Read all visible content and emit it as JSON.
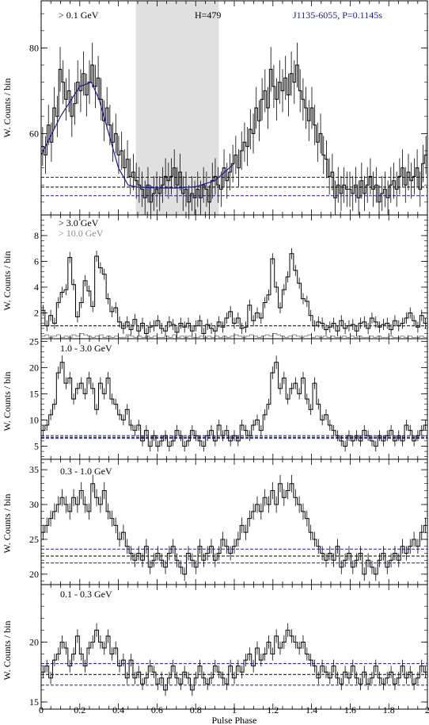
{
  "figure": {
    "xlabel": "Pulse Phase",
    "x_ticks": [
      "0",
      "0.2",
      "0.4",
      "0.6",
      "0.8",
      "1",
      "1.2",
      "1.4",
      "1.6",
      "1.8",
      "2"
    ],
    "colors": {
      "histogram": "#000000",
      "fit": "#1a1aa8",
      "blue_dashed": "#1a1aa8",
      "black_dashed": "#000000",
      "shade": "#e0e0e0",
      "pulsar_label": "#1a1aa8",
      "gray_label": "#8a8a8a"
    }
  },
  "chart_data": [
    {
      "type": "line",
      "panel": "top",
      "energy_label": "> 0.1 GeV",
      "h_label": "H=479",
      "pulsar_label": "J1135-6055, P=0.1145s",
      "ylabel": "W. Counts / bin",
      "y_ticks": [
        "60",
        "80"
      ],
      "ylim": [
        41,
        91
      ],
      "xlim": [
        0,
        2
      ],
      "off_pulse_region": [
        0.49,
        0.92
      ],
      "baseline": 47.5,
      "baseline_band": [
        45.5,
        49.8
      ],
      "fit_curve": {
        "x": [
          0.0,
          0.1,
          0.2,
          0.26,
          0.3,
          0.35,
          0.4,
          0.45,
          0.5,
          0.6,
          0.7,
          0.8,
          0.9,
          1.0
        ],
        "y": [
          55,
          64,
          71,
          72,
          68,
          60,
          52,
          48,
          47.5,
          47.3,
          47.3,
          47.6,
          49,
          53
        ]
      },
      "values": [
        57,
        55,
        62,
        58,
        66,
        64,
        75,
        72,
        68,
        70,
        64,
        67,
        72,
        70,
        74,
        69,
        72,
        76,
        71,
        73,
        68,
        63,
        66,
        62,
        58,
        60,
        55,
        56,
        52,
        54,
        50,
        51,
        49,
        48,
        47,
        45,
        48,
        44,
        46,
        47,
        46,
        48,
        50,
        49,
        50,
        52,
        48,
        51,
        46,
        47,
        44,
        46,
        45,
        47,
        45,
        48,
        47,
        44,
        49,
        50,
        48,
        47,
        52,
        49,
        51,
        53,
        55,
        52,
        56,
        58,
        57,
        61,
        60,
        66,
        63,
        68,
        70,
        66,
        75,
        71,
        68,
        72,
        70,
        73,
        69,
        74,
        72,
        76,
        70,
        68,
        66,
        63,
        66,
        62,
        58,
        60,
        55,
        54,
        50,
        51,
        45,
        48,
        46,
        48,
        47,
        47,
        46,
        48,
        45,
        49,
        46,
        48,
        50,
        47,
        48,
        44,
        46,
        47,
        45,
        48,
        49,
        47,
        50,
        52,
        48,
        51,
        49,
        50,
        52,
        47,
        53,
        55
      ]
    },
    {
      "type": "line",
      "panel": "second",
      "energy_label": "> 3.0 GeV",
      "gray_label": "> 10.0 GeV",
      "ylabel": "W. Counts / bin",
      "y_ticks": [
        "2",
        "4",
        "6",
        "8"
      ],
      "ylim": [
        0,
        9.6
      ],
      "xlim": [
        0,
        2
      ],
      "baseline": 1.0,
      "values": [
        2.2,
        1.0,
        1.8,
        1.2,
        2.8,
        3.6,
        3.8,
        6.3,
        4.2,
        1.7,
        2.8,
        4.5,
        3.7,
        2.5,
        6.4,
        5.5,
        5.0,
        3.1,
        2.1,
        2.4,
        1.3,
        0.8,
        1.3,
        0.7,
        1.5,
        0.6,
        1.2,
        0.4,
        0.9,
        1.0,
        1.4,
        0.8,
        0.6,
        1.3,
        1.1,
        0.5,
        1.2,
        0.9,
        1.2,
        0.6,
        1.0,
        1.4,
        0.4,
        1.1,
        0.8,
        0.6,
        1.3,
        0.9,
        1.6,
        2.1,
        1.2,
        1.6,
        0.8,
        0.9,
        2.6,
        1.4,
        2.0,
        1.6,
        2.8,
        3.4,
        6.2,
        4.0,
        2.4,
        3.8,
        4.8,
        6.6,
        5.3,
        4.3,
        3.1,
        2.9,
        1.8,
        1.0,
        1.3,
        1.2,
        0.7,
        0.9,
        1.2,
        0.6,
        1.4,
        0.8,
        1.0,
        1.1,
        0.6,
        1.2,
        1.3,
        0.8,
        1.6,
        1.3,
        0.9,
        1.1,
        1.2,
        0.7,
        1.4,
        1.0,
        1.2,
        1.6,
        2.0,
        1.4,
        0.9,
        1.8,
        1.2
      ],
      "gray_values": [
        0.2,
        0.3,
        0.1,
        0.2,
        0.3,
        0.1,
        0.2,
        0.1,
        0.3,
        0.2,
        0.4,
        0.3,
        0.2,
        0.1,
        0.2,
        0.3,
        0.1,
        0.2,
        0.1,
        0.2,
        0.1,
        0.1,
        0.3,
        0.2,
        0.1,
        0.2,
        0.1,
        0.2,
        0.1,
        0.2,
        0.1,
        0.1,
        0.2,
        0.1,
        0.3,
        0.1,
        0.2,
        0.1,
        0.2,
        0.1,
        0.1,
        0.2,
        0.1,
        0.2,
        0.1,
        0.2,
        0.1,
        0.2,
        0.1,
        0.2,
        0.3,
        0.2,
        0.1,
        0.2,
        0.3,
        0.2,
        0.1,
        0.2,
        0.3,
        0.2,
        0.4,
        0.3,
        0.2,
        0.1,
        0.2,
        0.3,
        0.2,
        0.1,
        0.2,
        0.3,
        0.1,
        0.2,
        0.1,
        0.2,
        0.1,
        0.2,
        0.1,
        0.1,
        0.2,
        0.1,
        0.2,
        0.1,
        0.2,
        0.1,
        0.1,
        0.2,
        0.1,
        0.2,
        0.1,
        0.1,
        0.2,
        0.1,
        0.1,
        0.2,
        0.1,
        0.2,
        0.1,
        0.1,
        0.2,
        0.1
      ]
    },
    {
      "type": "line",
      "panel": "third",
      "energy_label": "1.0 - 3.0 GeV",
      "ylabel": "W. Counts / bin",
      "y_ticks": [
        "5",
        "10",
        "15",
        "20",
        "25"
      ],
      "ylim": [
        2.5,
        25.5
      ],
      "xlim": [
        0,
        2
      ],
      "baseline": 6.7,
      "baseline_band": [
        6.5,
        7.0
      ],
      "values": [
        8,
        9,
        11,
        13,
        19,
        21,
        17,
        18,
        14,
        16,
        17,
        15,
        18,
        16,
        12,
        17,
        15,
        18,
        14,
        13,
        11,
        10,
        12,
        9,
        8,
        9,
        6,
        8,
        5,
        7,
        5,
        6,
        7,
        5,
        6,
        8,
        7,
        5,
        6,
        8,
        7,
        6,
        5,
        7,
        8,
        6,
        9,
        7,
        8,
        6,
        7,
        6,
        9,
        8,
        7,
        9,
        10,
        8,
        11,
        13,
        19,
        21,
        16,
        18,
        14,
        16,
        17,
        15,
        18,
        14,
        12,
        17,
        13,
        10,
        11,
        9,
        8,
        7,
        6,
        5,
        7,
        6,
        7,
        6,
        8,
        7,
        6,
        5,
        7,
        6,
        7,
        8,
        6,
        7,
        6,
        9,
        8,
        6,
        7,
        8,
        9
      ]
    },
    {
      "type": "line",
      "panel": "fourth",
      "energy_label": "0.3 - 1.0 GeV",
      "ylabel": "W. Counts / bin",
      "y_ticks": [
        "20",
        "25",
        "30",
        "35"
      ],
      "ylim": [
        18.5,
        36.5
      ],
      "xlim": [
        0,
        2
      ],
      "baseline": 22.6,
      "baseline_band": [
        21.6,
        23.6
      ],
      "values": [
        26,
        27,
        28,
        29,
        30,
        31,
        30,
        29,
        31,
        30,
        32,
        30,
        29,
        33,
        31,
        30,
        32,
        29,
        28,
        27,
        25,
        26,
        24,
        23,
        22,
        23,
        22,
        24,
        21,
        22,
        23,
        22,
        21,
        23,
        24,
        22,
        21,
        20,
        23,
        22,
        21,
        24,
        22,
        23,
        24,
        22,
        23,
        25,
        24,
        23,
        24,
        25,
        27,
        26,
        28,
        29,
        30,
        29,
        31,
        30,
        32,
        30,
        33,
        31,
        32,
        33,
        31,
        30,
        29,
        28,
        26,
        25,
        24,
        23,
        22,
        23,
        22,
        24,
        21,
        22,
        23,
        21,
        22,
        23,
        20,
        22,
        21,
        20,
        22,
        23,
        21,
        22,
        23,
        22,
        24,
        23,
        24,
        25,
        24,
        26,
        27
      ]
    },
    {
      "type": "line",
      "panel": "bottom",
      "energy_label": "0.1 - 0.3 GeV",
      "ylabel": "W. Counts / bin",
      "y_ticks": [
        "15",
        "20"
      ],
      "ylim": [
        14.4,
        24.8
      ],
      "xlim": [
        0,
        2
      ],
      "baseline": 17.3,
      "baseline_band": [
        16.4,
        18.2
      ],
      "values": [
        17.5,
        18,
        17,
        18.5,
        19,
        20,
        19.5,
        18,
        19,
        20.5,
        19,
        18,
        19.5,
        20,
        21,
        20,
        19.5,
        20.5,
        19,
        19.5,
        18,
        18.5,
        17,
        18.5,
        17,
        17.5,
        16.5,
        17,
        18,
        17.5,
        16.5,
        17,
        16,
        17,
        18,
        17,
        16.5,
        17.5,
        17,
        16,
        17,
        18,
        17,
        16.5,
        17,
        18,
        17.5,
        17,
        16.5,
        18,
        17,
        18,
        17.5,
        18.5,
        19,
        18,
        19.5,
        18.5,
        19,
        20,
        19,
        20.5,
        19.5,
        20,
        21,
        20.5,
        20,
        19.5,
        20,
        19,
        18.5,
        18,
        17,
        18,
        17.5,
        17,
        18,
        17,
        16.5,
        17.5,
        17,
        18,
        17,
        16.5,
        17.5,
        16.5,
        17,
        18,
        17,
        16.5,
        17,
        17.5,
        16.5,
        17,
        18,
        17,
        17.5,
        16.5,
        17,
        18,
        17.5
      ]
    }
  ]
}
